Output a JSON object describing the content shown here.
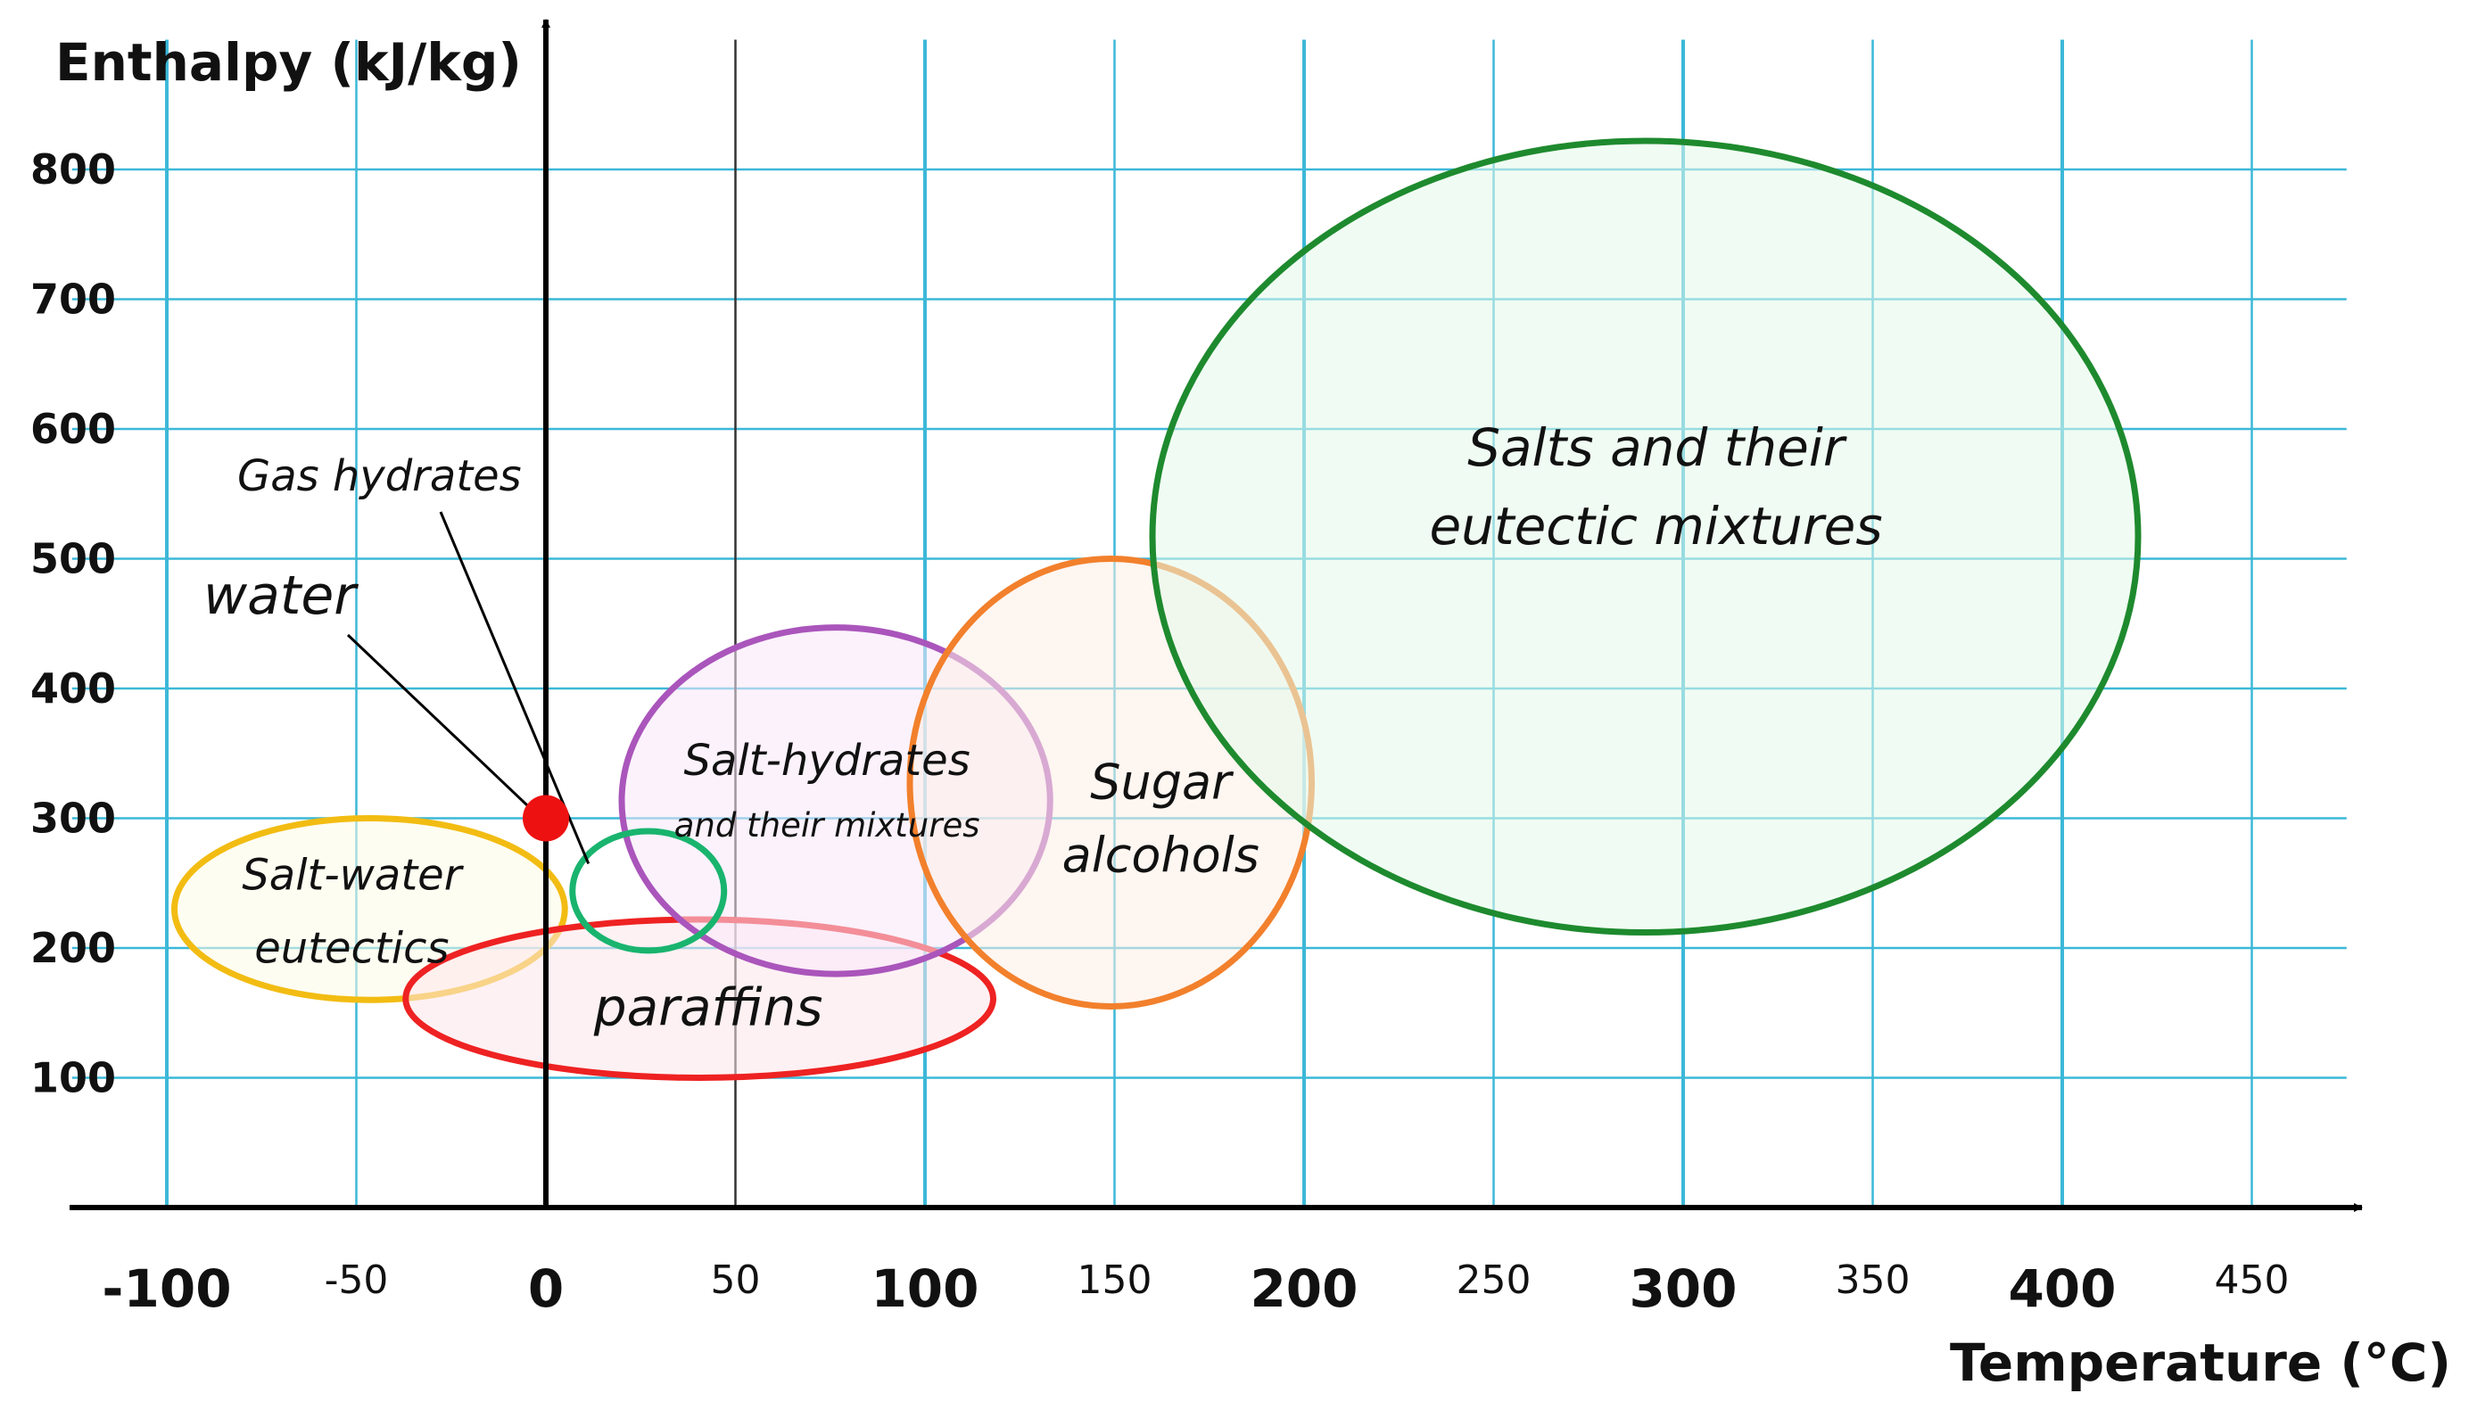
{
  "chart_data": {
    "type": "scatter",
    "ylabel": "Enthalpy (kJ/kg)",
    "xlabel": "Temperature (°C)",
    "xlim": [
      -125,
      475
    ],
    "ylim": [
      0,
      900
    ],
    "x_ticks": [
      {
        "value": -100,
        "label": "-100",
        "major": true
      },
      {
        "value": -50,
        "label": "-50",
        "major": false
      },
      {
        "value": 0,
        "label": "0",
        "major": true
      },
      {
        "value": 50,
        "label": "50",
        "major": false
      },
      {
        "value": 100,
        "label": "100",
        "major": true
      },
      {
        "value": 150,
        "label": "150",
        "major": false
      },
      {
        "value": 200,
        "label": "200",
        "major": true
      },
      {
        "value": 250,
        "label": "250",
        "major": false
      },
      {
        "value": 300,
        "label": "300",
        "major": true
      },
      {
        "value": 350,
        "label": "350",
        "major": false
      },
      {
        "value": 400,
        "label": "400",
        "major": true
      },
      {
        "value": 450,
        "label": "450",
        "major": false
      }
    ],
    "y_ticks": [
      100,
      200,
      300,
      400,
      500,
      600,
      700,
      800
    ],
    "grid": true,
    "grid_color": "#3cb8d8",
    "regions": [
      {
        "lines": [
          "Salt-water",
          "eutectics"
        ],
        "x_range": [
          -98,
          5
        ],
        "y_range": [
          160,
          300
        ],
        "color": "#f2bc12",
        "fill": "#fdfbe6"
      },
      {
        "lines": [
          "paraffins"
        ],
        "x_range": [
          -37,
          118
        ],
        "y_range": [
          100,
          222
        ],
        "color": "#ee2222",
        "fill": "#fde6ea"
      },
      {
        "lines": [
          "Salt-hydrates",
          "and their mixtures"
        ],
        "x_range": [
          20,
          133
        ],
        "y_range": [
          180,
          447
        ],
        "color": "#aa55bb",
        "fill": "#f8e8fa"
      },
      {
        "lines": [
          "Sugar",
          "alcohols"
        ],
        "x_range": [
          96,
          202
        ],
        "y_range": [
          155,
          500
        ],
        "color": "#f2802c",
        "fill": "#fdefe6"
      },
      {
        "lines": [
          "Salts and their",
          "eutectic mixtures"
        ],
        "x_range": [
          160,
          420
        ],
        "y_range": [
          212,
          822
        ],
        "color": "#1e8a2e",
        "fill": "#e3f9ea"
      },
      {
        "lines": [
          ""
        ],
        "x_range": [
          7,
          47
        ],
        "y_range": [
          198,
          290
        ],
        "color": "#19b46e",
        "fill": "none"
      }
    ],
    "points": [
      {
        "name": "water",
        "x": 0,
        "y": 300,
        "color": "#ee1111"
      }
    ],
    "annotations": [
      {
        "text": "water"
      },
      {
        "text": "Gas hydrates"
      }
    ]
  }
}
